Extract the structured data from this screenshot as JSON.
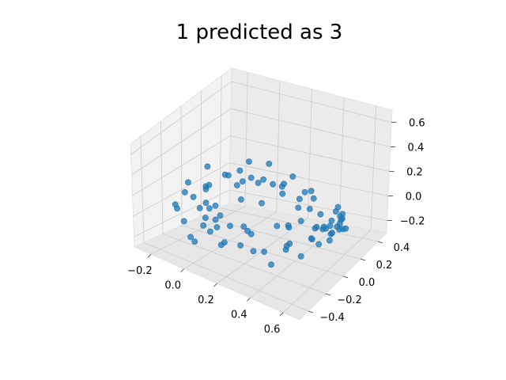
{
  "chart_data": {
    "type": "scatter",
    "title": "1 predicted as 3",
    "xlabel": "",
    "ylabel": "",
    "zlabel": "",
    "xlim": [
      -0.3,
      0.7
    ],
    "ylim": [
      -0.5,
      0.5
    ],
    "zlim": [
      -0.3,
      0.7
    ],
    "x_ticks": [
      "−0.2",
      "0.0",
      "0.2",
      "0.4",
      "0.6"
    ],
    "y_ticks": [
      "−0.4",
      "−0.2",
      "0.0",
      "0.2",
      "0.4"
    ],
    "z_ticks": [
      "−0.2",
      "0.0",
      "0.2",
      "0.4",
      "0.6"
    ],
    "grid": true,
    "projection": "3d",
    "marker_color": "#1f77b4",
    "series": [
      {
        "points": [
          [
            0.12,
            -0.35,
            0.05
          ],
          [
            0.1,
            -0.28,
            0.1
          ],
          [
            0.05,
            -0.3,
            -0.05
          ],
          [
            0.0,
            -0.22,
            0.08
          ],
          [
            -0.05,
            -0.2,
            -0.1
          ],
          [
            -0.1,
            -0.15,
            0.0
          ],
          [
            -0.12,
            -0.05,
            0.1
          ],
          [
            -0.15,
            0.0,
            -0.05
          ],
          [
            -0.18,
            0.05,
            0.05
          ],
          [
            -0.15,
            0.1,
            -0.12
          ],
          [
            -0.1,
            0.15,
            0.12
          ],
          [
            -0.05,
            0.2,
            -0.08
          ],
          [
            0.0,
            0.22,
            0.1
          ],
          [
            0.05,
            0.25,
            -0.1
          ],
          [
            0.1,
            0.28,
            0.05
          ],
          [
            0.15,
            0.3,
            -0.02
          ],
          [
            0.2,
            0.32,
            0.12
          ],
          [
            0.25,
            0.3,
            -0.1
          ],
          [
            0.3,
            0.28,
            0.05
          ],
          [
            0.35,
            0.25,
            -0.05
          ],
          [
            0.4,
            0.2,
            0.08
          ],
          [
            0.45,
            0.15,
            -0.1
          ],
          [
            0.5,
            0.1,
            0.05
          ],
          [
            0.5,
            0.0,
            -0.08
          ],
          [
            0.48,
            -0.08,
            0.1
          ],
          [
            0.45,
            -0.15,
            -0.05
          ],
          [
            0.4,
            -0.2,
            0.1
          ],
          [
            0.35,
            -0.25,
            -0.1
          ],
          [
            0.3,
            -0.3,
            0.05
          ],
          [
            0.25,
            -0.33,
            -0.05
          ],
          [
            0.2,
            -0.35,
            0.1
          ],
          [
            0.15,
            -0.36,
            -0.08
          ],
          [
            -0.2,
            -0.1,
            0.15
          ],
          [
            -0.2,
            0.1,
            0.18
          ],
          [
            -0.05,
            -0.3,
            0.2
          ],
          [
            0.1,
            -0.1,
            0.25
          ],
          [
            0.2,
            -0.05,
            0.28
          ],
          [
            0.3,
            0.05,
            0.25
          ],
          [
            0.0,
            0.1,
            0.22
          ],
          [
            0.15,
            0.15,
            0.3
          ],
          [
            -0.1,
            -0.25,
            -0.2
          ],
          [
            0.05,
            -0.15,
            -0.22
          ],
          [
            0.2,
            -0.1,
            -0.25
          ],
          [
            0.35,
            0.0,
            -0.2
          ],
          [
            0.05,
            0.1,
            -0.25
          ],
          [
            -0.12,
            0.05,
            -0.2
          ],
          [
            0.25,
            0.2,
            -0.2
          ],
          [
            0.4,
            -0.1,
            -0.15
          ],
          [
            0.55,
            0.05,
            0.0
          ],
          [
            0.55,
            -0.05,
            0.05
          ],
          [
            0.56,
            0.1,
            -0.02
          ],
          [
            0.57,
            0.0,
            0.02
          ],
          [
            0.58,
            0.08,
            0.04
          ],
          [
            0.56,
            -0.1,
            0.0
          ],
          [
            0.6,
            0.05,
            -0.03
          ],
          [
            0.6,
            -0.02,
            0.05
          ],
          [
            0.62,
            0.1,
            0.02
          ],
          [
            0.62,
            0.0,
            0.0
          ],
          [
            0.6,
            0.15,
            0.01
          ],
          [
            0.58,
            0.2,
            -0.02
          ],
          [
            0.55,
            0.18,
            0.04
          ],
          [
            0.63,
            0.05,
            0.03
          ],
          [
            0.64,
            -0.05,
            -0.01
          ],
          [
            0.61,
            0.12,
            0.06
          ],
          [
            0.59,
            -0.08,
            -0.04
          ],
          [
            0.57,
            0.22,
            0.0
          ],
          [
            0.53,
            0.24,
            0.03
          ],
          [
            0.65,
            0.08,
            0.0
          ],
          [
            0.66,
            0.02,
            0.04
          ],
          [
            0.63,
            0.15,
            -0.05
          ],
          [
            -0.08,
            -0.35,
            0.0
          ],
          [
            -0.15,
            -0.3,
            0.05
          ],
          [
            -0.22,
            -0.2,
            0.0
          ],
          [
            -0.25,
            -0.05,
            0.02
          ],
          [
            -0.22,
            0.15,
            0.0
          ],
          [
            -0.18,
            0.25,
            0.05
          ],
          [
            -0.1,
            0.3,
            0.0
          ],
          [
            0.0,
            0.35,
            0.02
          ],
          [
            0.1,
            0.38,
            -0.02
          ],
          [
            0.3,
            0.35,
            0.02
          ],
          [
            0.0,
            -0.38,
            -0.12
          ],
          [
            0.08,
            -0.4,
            0.14
          ],
          [
            0.3,
            -0.38,
            0.16
          ],
          [
            0.42,
            -0.3,
            -0.14
          ],
          [
            0.48,
            -0.22,
            0.15
          ],
          [
            0.52,
            -0.15,
            -0.12
          ],
          [
            -0.05,
            0.28,
            0.18
          ],
          [
            0.2,
            0.4,
            -0.1
          ]
        ]
      }
    ]
  }
}
